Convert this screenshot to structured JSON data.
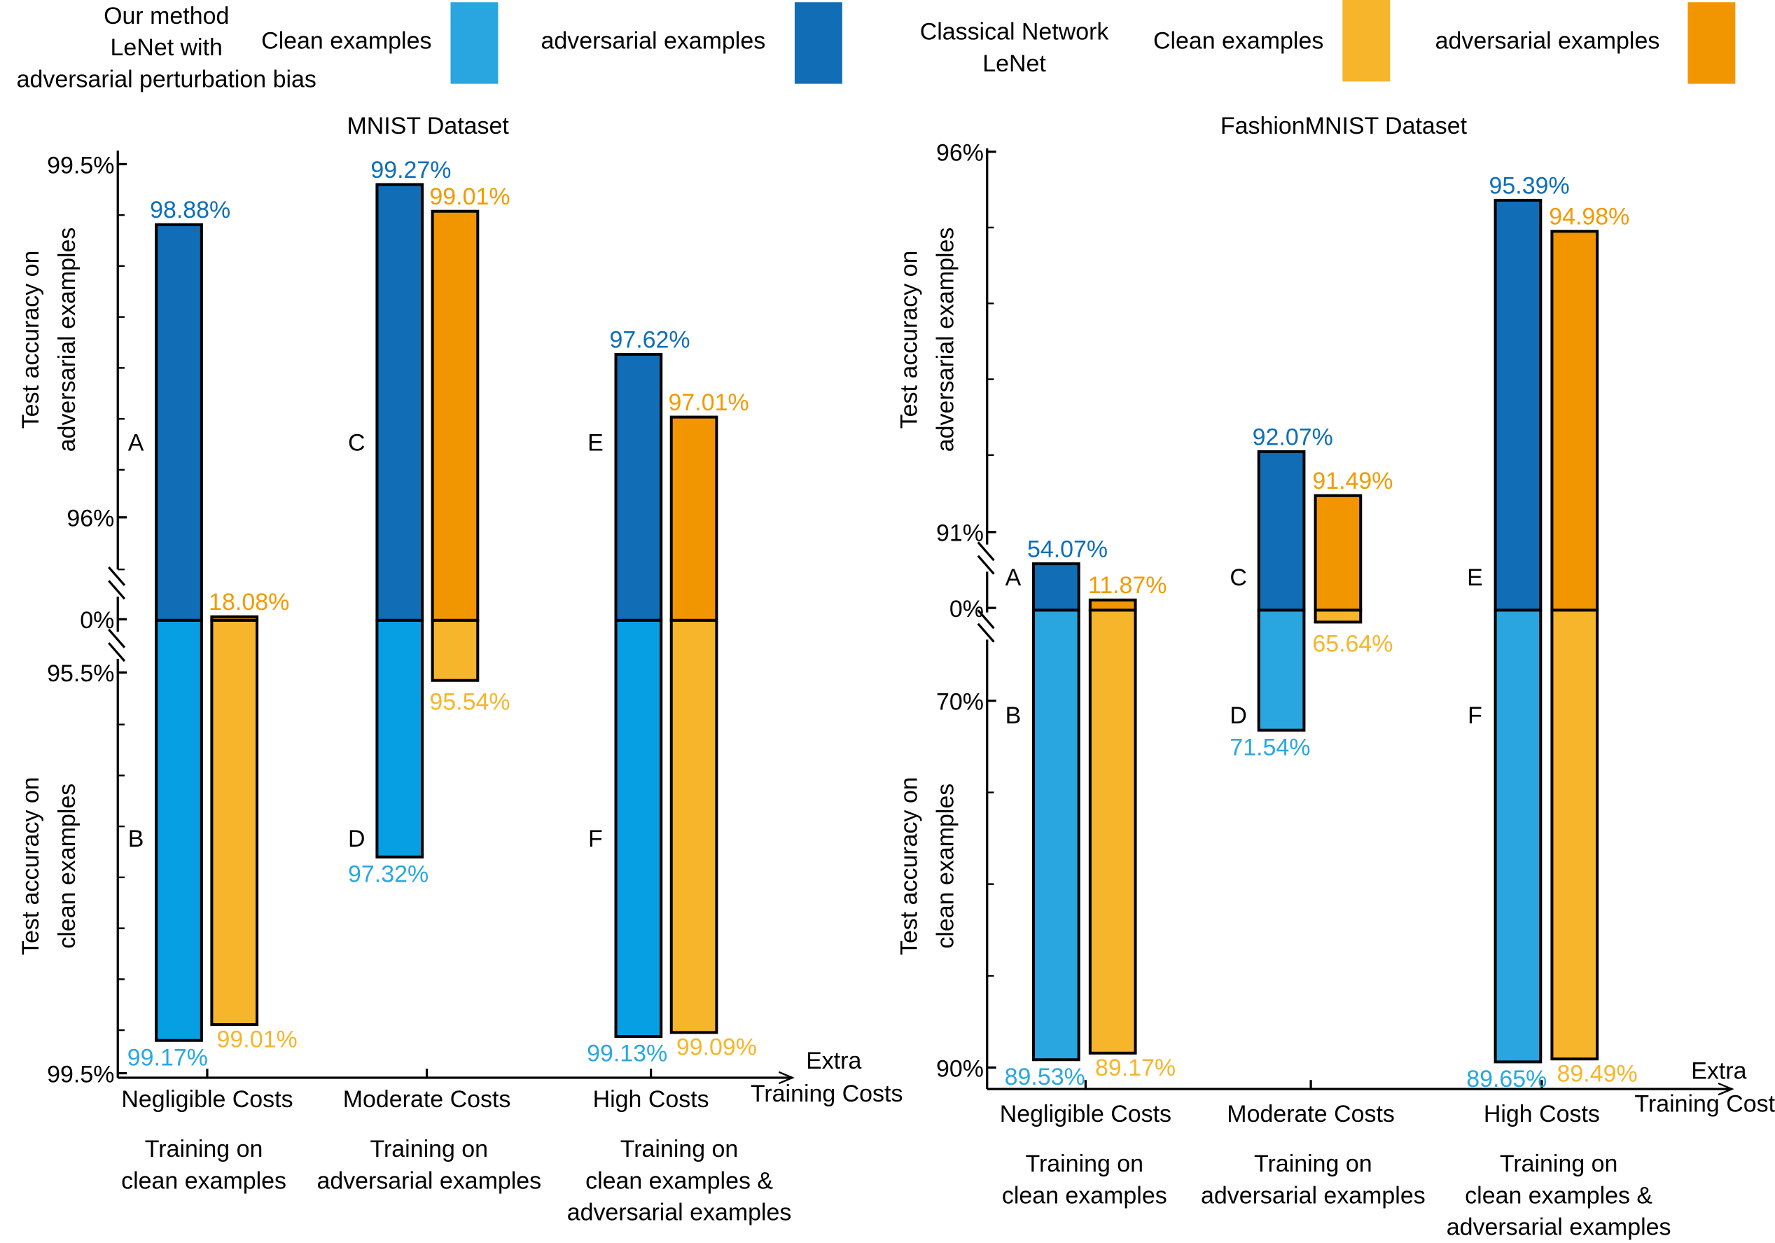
{
  "legend": {
    "ours_title": [
      "Our method",
      "LeNet with",
      "adversarial perturbation bias"
    ],
    "classical_title": [
      "Classical Network",
      "LeNet"
    ],
    "clean_label": "Clean examples",
    "adv_label": "adversarial examples",
    "colors": {
      "ours_clean": "#29a6e0",
      "ours_adv": "#106db6",
      "cls_clean": "#f7b52c",
      "cls_adv": "#f29600"
    }
  },
  "chart_data": [
    {
      "type": "bar",
      "title": "MNIST Dataset",
      "ylabel_top": [
        "Test accuracy on",
        "adversarial examples"
      ],
      "ylabel_bottom": [
        "Test accuracy on",
        "clean examples"
      ],
      "xlabel": [
        "Extra",
        "Training Costs"
      ],
      "yticks_top": [
        "99.5%",
        "96%",
        "0%"
      ],
      "yticks_bottom": [
        "95.5%",
        "99.5%"
      ],
      "categories": [
        "Negligible Costs",
        "Moderate Costs",
        "High Costs"
      ],
      "sublabels": [
        [
          "Training on",
          "clean examples"
        ],
        [
          "Training on",
          "adversarial examples"
        ],
        [
          "Training on",
          "clean examples &",
          "adversarial examples"
        ]
      ],
      "letters": [
        [
          "A",
          "B"
        ],
        [
          "C",
          "D"
        ],
        [
          "E",
          "F"
        ]
      ],
      "series": [
        {
          "name": "Our method – adversarial examples",
          "values": [
            98.88,
            99.27,
            97.62
          ],
          "labels": [
            "98.88%",
            "99.27%",
            "97.62%"
          ]
        },
        {
          "name": "Our method – clean examples",
          "values": [
            99.17,
            97.32,
            99.13
          ],
          "labels": [
            "99.17%",
            "97.32%",
            "99.13%"
          ]
        },
        {
          "name": "Classical LeNet – adversarial examples",
          "values": [
            18.08,
            99.01,
            97.01
          ],
          "labels": [
            "18.08%",
            "99.01%",
            "97.01%"
          ]
        },
        {
          "name": "Classical LeNet – clean examples",
          "values": [
            99.01,
            95.54,
            99.09
          ],
          "labels": [
            "99.01%",
            "95.54%",
            "99.09%"
          ]
        }
      ]
    },
    {
      "type": "bar",
      "title": "FashionMNIST Dataset",
      "ylabel_top": [
        "Test accuracy on",
        "adversarial examples"
      ],
      "ylabel_bottom": [
        "Test accuracy on",
        "clean examples"
      ],
      "xlabel": [
        "Extra",
        "Training Costs"
      ],
      "yticks_top": [
        "96%",
        "91%",
        "0%"
      ],
      "yticks_bottom": [
        "70%",
        "90%"
      ],
      "categories": [
        "Negligible Costs",
        "Moderate Costs",
        "High Costs"
      ],
      "sublabels": [
        [
          "Training on",
          "clean examples"
        ],
        [
          "Training on",
          "adversarial examples"
        ],
        [
          "Training on",
          "clean examples &",
          "adversarial examples"
        ]
      ],
      "letters": [
        [
          "A",
          "B"
        ],
        [
          "C",
          "D"
        ],
        [
          "E",
          "F"
        ]
      ],
      "series": [
        {
          "name": "Our method – adversarial examples",
          "values": [
            54.07,
            92.07,
            95.39
          ],
          "labels": [
            "54.07%",
            "92.07%",
            "95.39%"
          ]
        },
        {
          "name": "Our method – clean examples",
          "values": [
            89.53,
            71.54,
            89.65
          ],
          "labels": [
            "89.53%",
            "71.54%",
            "89.65%"
          ]
        },
        {
          "name": "Classical LeNet – adversarial examples",
          "values": [
            11.87,
            91.49,
            94.98
          ],
          "labels": [
            "11.87%",
            "91.49%",
            "94.98%"
          ]
        },
        {
          "name": "Classical LeNet – clean examples",
          "values": [
            89.17,
            65.64,
            89.49
          ],
          "labels": [
            "89.17%",
            "65.64%",
            "89.49%"
          ]
        }
      ]
    }
  ]
}
